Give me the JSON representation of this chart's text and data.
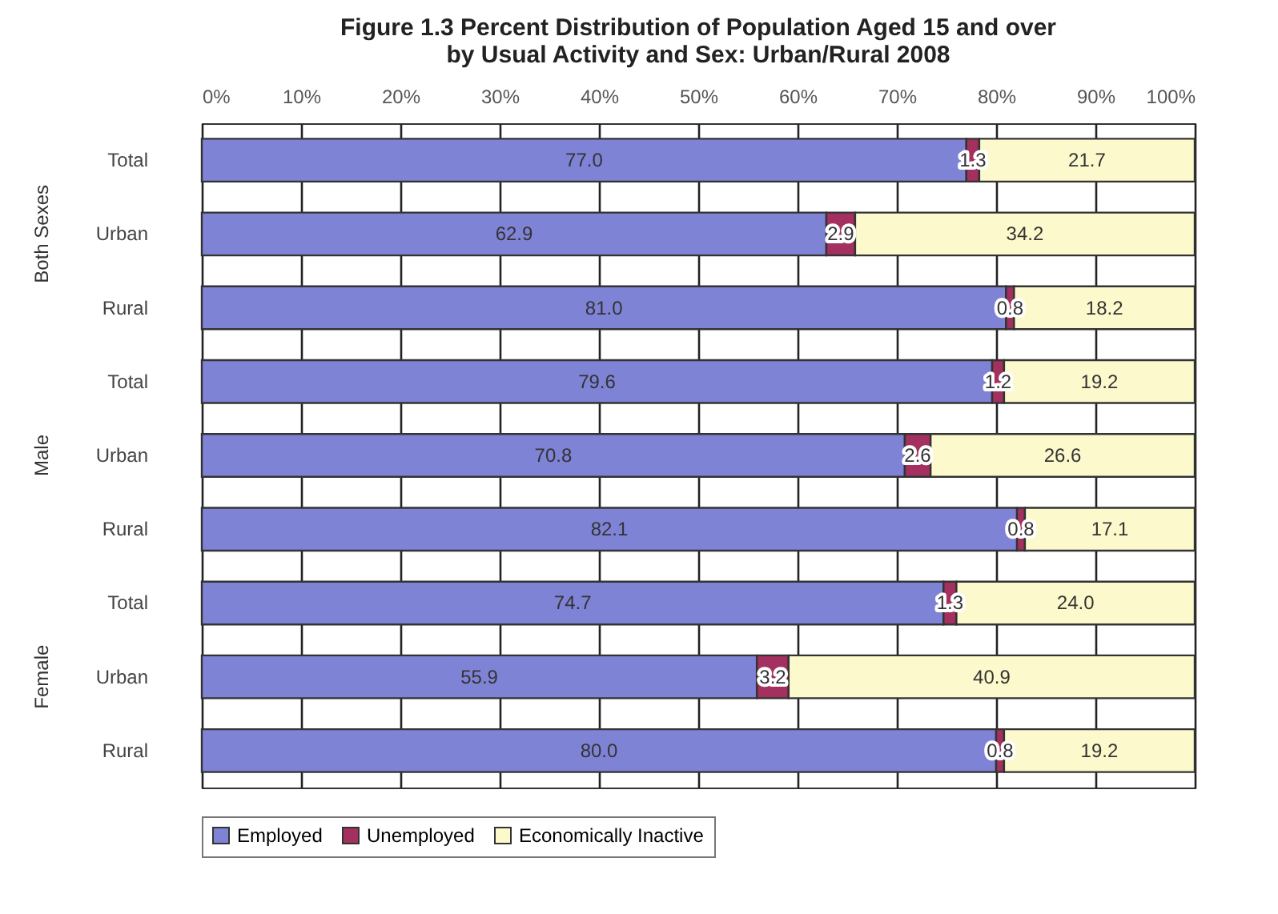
{
  "chart_data": {
    "type": "bar",
    "orientation": "horizontal",
    "stacked": true,
    "title": "Figure 1.3   Percent Distribution of Population Aged 15 and over\nby Usual Activity and Sex: Urban/Rural 2008",
    "categories": [
      "Total",
      "Urban",
      "Rural",
      "Total",
      "Urban",
      "Rural",
      "Total",
      "Urban",
      "Rural"
    ],
    "annotations": [
      "Both Sexes",
      "Male",
      "Female"
    ],
    "series": [
      {
        "name": "Employed",
        "color": "#7f83d6",
        "values": [
          77.0,
          62.9,
          81.0,
          79.6,
          70.8,
          82.1,
          74.7,
          55.9,
          80.0
        ],
        "value_labels": [
          "77.0",
          "62.9",
          "81.0",
          "79.6",
          "70.8",
          "82.1",
          "74.7",
          "55.9",
          "80.0"
        ]
      },
      {
        "name": "Unemployed",
        "color": "#a3305f",
        "values": [
          1.3,
          2.9,
          0.8,
          1.2,
          2.6,
          0.8,
          1.3,
          3.2,
          0.8
        ],
        "value_labels": [
          "1.3",
          "2.9",
          "0.8",
          "1.2",
          "2.6",
          "0.8",
          "1.3",
          "3.2",
          "0.8"
        ]
      },
      {
        "name": "Economically Inactive",
        "color": "#fcf9cc",
        "values": [
          21.7,
          34.2,
          18.2,
          19.2,
          26.6,
          17.1,
          24.0,
          40.9,
          19.2
        ],
        "value_labels": [
          "21.7",
          "34.2",
          "18.2",
          "19.2",
          "26.6",
          "17.1",
          "24.0",
          "40.9",
          "19.2"
        ]
      }
    ],
    "xlim": [
      0,
      100
    ],
    "xticks": [
      {
        "value": 0,
        "label": "0%"
      },
      {
        "value": 10,
        "label": "10%"
      },
      {
        "value": 20,
        "label": "20%"
      },
      {
        "value": 30,
        "label": "30%"
      },
      {
        "value": 40,
        "label": "40%"
      },
      {
        "value": 50,
        "label": "50%"
      },
      {
        "value": 60,
        "label": "60%"
      },
      {
        "value": 70,
        "label": "70%"
      },
      {
        "value": 80,
        "label": "80%"
      },
      {
        "value": 90,
        "label": "90%"
      },
      {
        "value": 100,
        "label": "100%"
      }
    ],
    "grid": true,
    "legend": "bottom"
  }
}
